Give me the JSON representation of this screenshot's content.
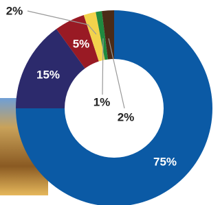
{
  "chart_data": {
    "type": "donut",
    "values": [
      75,
      15,
      5,
      2,
      1,
      2
    ],
    "value_labels": [
      "75%",
      "15%",
      "5%",
      "2%",
      "1%",
      "2%"
    ],
    "colors": [
      "#0b5aa5",
      "#2c2a6c",
      "#991a24",
      "#f2d34c",
      "#1f8a3f",
      "#4b2b17"
    ]
  }
}
